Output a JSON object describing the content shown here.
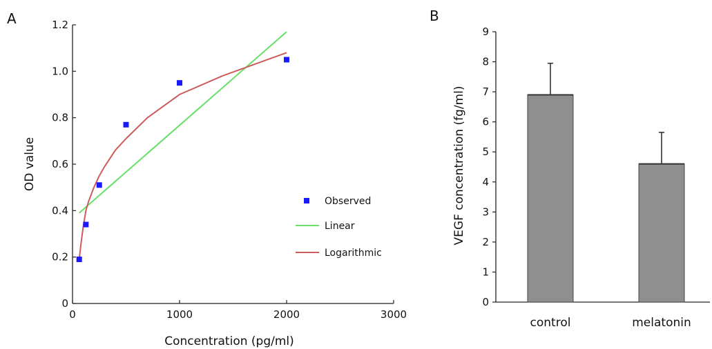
{
  "chart_data": [
    {
      "panel": "A",
      "type": "scatter",
      "xlabel": "Concentration (pg/ml)",
      "ylabel": "OD value",
      "xlim": [
        0,
        3000
      ],
      "ylim": [
        0,
        1.2
      ],
      "xticks": [
        "0",
        "1000",
        "2000",
        "3000"
      ],
      "yticks": [
        "0",
        "0.2",
        "0.4",
        "0.6",
        "0.8",
        "1.0",
        "1.2"
      ],
      "series": [
        {
          "name": "Observed",
          "kind": "points",
          "color": "#1a1aff",
          "x": [
            62.5,
            125,
            250,
            500,
            1000,
            2000
          ],
          "y": [
            0.19,
            0.34,
            0.51,
            0.77,
            0.95,
            1.05
          ]
        },
        {
          "name": "Linear",
          "kind": "line",
          "color": "#66e066",
          "x": [
            62.5,
            2000
          ],
          "y": [
            0.39,
            1.17
          ]
        },
        {
          "name": "Logarithmic",
          "kind": "curve",
          "color": "#cc5c5c",
          "x": [
            62.5,
            80,
            100,
            125,
            150,
            200,
            250,
            300,
            400,
            500,
            700,
            1000,
            1400,
            2000
          ],
          "y": [
            0.19,
            0.26,
            0.33,
            0.4,
            0.44,
            0.5,
            0.55,
            0.59,
            0.66,
            0.71,
            0.8,
            0.9,
            0.98,
            1.08
          ]
        }
      ],
      "legend_position": "right"
    },
    {
      "panel": "B",
      "type": "bar",
      "ylabel": "VEGF concentration (fg/ml)",
      "ylim": [
        0,
        9
      ],
      "yticks": [
        "0",
        "1",
        "2",
        "3",
        "4",
        "5",
        "6",
        "7",
        "8",
        "9"
      ],
      "categories": [
        "control",
        "melatonin"
      ],
      "values": [
        6.9,
        4.6
      ],
      "errors": [
        1.05,
        1.05
      ],
      "bar_color": "#8f8f8f"
    }
  ]
}
